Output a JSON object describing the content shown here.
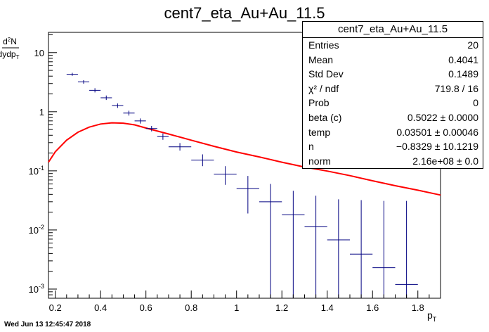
{
  "chart_data": {
    "type": "scatter",
    "title": "cent7_eta_Au+Au_11.5",
    "xlabel": "p",
    "xlabel_sub": "T",
    "ylabel_top": "d",
    "ylabel_top_sup": "2",
    "ylabel_top_main": "N",
    "ylabel_bottom": "dydp",
    "ylabel_bottom_sub": "T",
    "xlim": [
      0.17,
      1.9
    ],
    "ylim": [
      0.0007,
      22
    ],
    "yscale": "log",
    "x_ticks": [
      "0.2",
      "0.4",
      "0.6",
      "0.8",
      "1",
      "1.2",
      "1.4",
      "1.6",
      "1.8"
    ],
    "y_tick_base": "10",
    "y_tick_exponents": [
      "-3",
      "-2",
      "-1"
    ],
    "y_tick_plain": [
      "1",
      "10"
    ],
    "series": [
      {
        "type": "errorbar",
        "color": "#000080",
        "points": [
          {
            "x": 0.275,
            "y": 4.3,
            "xerr": 0.025,
            "ylo": 4.05,
            "yhi": 4.55
          },
          {
            "x": 0.325,
            "y": 3.2,
            "xerr": 0.025,
            "ylo": 2.98,
            "yhi": 3.42
          },
          {
            "x": 0.375,
            "y": 2.3,
            "xerr": 0.025,
            "ylo": 2.12,
            "yhi": 2.5
          },
          {
            "x": 0.425,
            "y": 1.72,
            "xerr": 0.025,
            "ylo": 1.58,
            "yhi": 1.88
          },
          {
            "x": 0.475,
            "y": 1.27,
            "xerr": 0.025,
            "ylo": 1.16,
            "yhi": 1.38
          },
          {
            "x": 0.525,
            "y": 0.95,
            "xerr": 0.025,
            "ylo": 0.86,
            "yhi": 1.04
          },
          {
            "x": 0.575,
            "y": 0.7,
            "xerr": 0.025,
            "ylo": 0.63,
            "yhi": 0.77
          },
          {
            "x": 0.625,
            "y": 0.52,
            "xerr": 0.025,
            "ylo": 0.465,
            "yhi": 0.575
          },
          {
            "x": 0.675,
            "y": 0.38,
            "xerr": 0.025,
            "ylo": 0.335,
            "yhi": 0.43
          },
          {
            "x": 0.75,
            "y": 0.255,
            "xerr": 0.05,
            "ylo": 0.22,
            "yhi": 0.295
          },
          {
            "x": 0.85,
            "y": 0.152,
            "xerr": 0.05,
            "ylo": 0.12,
            "yhi": 0.19
          },
          {
            "x": 0.95,
            "y": 0.088,
            "xerr": 0.05,
            "ylo": 0.058,
            "yhi": 0.12
          },
          {
            "x": 1.05,
            "y": 0.05,
            "xerr": 0.05,
            "ylo": 0.019,
            "yhi": 0.082
          },
          {
            "x": 1.15,
            "y": 0.03,
            "xerr": 0.05,
            "ylo": 0.0007,
            "yhi": 0.06
          },
          {
            "x": 1.25,
            "y": 0.018,
            "xerr": 0.05,
            "ylo": 0.0007,
            "yhi": 0.046
          },
          {
            "x": 1.35,
            "y": 0.0113,
            "xerr": 0.05,
            "ylo": 0.0007,
            "yhi": 0.038
          },
          {
            "x": 1.45,
            "y": 0.0068,
            "xerr": 0.05,
            "ylo": 0.0007,
            "yhi": 0.033
          },
          {
            "x": 1.55,
            "y": 0.0039,
            "xerr": 0.05,
            "ylo": 0.0007,
            "yhi": 0.032
          },
          {
            "x": 1.65,
            "y": 0.0023,
            "xerr": 0.05,
            "ylo": 0.0007,
            "yhi": 0.031
          },
          {
            "x": 1.75,
            "y": 0.0012,
            "xerr": 0.05,
            "ylo": 0.0007,
            "yhi": 0.031
          }
        ]
      },
      {
        "type": "line",
        "color": "#ff0000",
        "x": [
          0.17,
          0.2,
          0.25,
          0.3,
          0.35,
          0.4,
          0.45,
          0.5,
          0.55,
          0.6,
          0.7,
          0.8,
          0.9,
          1.0,
          1.1,
          1.2,
          1.3,
          1.4,
          1.5,
          1.6,
          1.7,
          1.8,
          1.9
        ],
        "y": [
          0.14,
          0.21,
          0.33,
          0.45,
          0.55,
          0.62,
          0.65,
          0.64,
          0.6,
          0.53,
          0.42,
          0.33,
          0.26,
          0.208,
          0.172,
          0.14,
          0.116,
          0.099,
          0.083,
          0.068,
          0.056,
          0.047,
          0.039
        ]
      }
    ]
  },
  "stats": {
    "title": "cent7_eta_Au+Au_11.5",
    "rows": [
      {
        "label": "Entries",
        "value": "20"
      },
      {
        "label": "Mean",
        "value": "0.4041"
      },
      {
        "label": "Std Dev",
        "value": "0.1489"
      },
      {
        "label": "χ² / ndf",
        "value": "719.8 / 16"
      },
      {
        "label": "Prob",
        "value": "0"
      },
      {
        "label": "beta (c)",
        "value": "0.5022 ± 0.0000"
      },
      {
        "label": "temp",
        "value": "0.03501 ± 0.00046"
      },
      {
        "label": "n",
        "value": "−0.8329 ± 10.1219"
      },
      {
        "label": "norm",
        "value": "2.16e+08 ± 0.0"
      }
    ]
  },
  "footer": "Wed Jun 13 12:45:47 2018"
}
